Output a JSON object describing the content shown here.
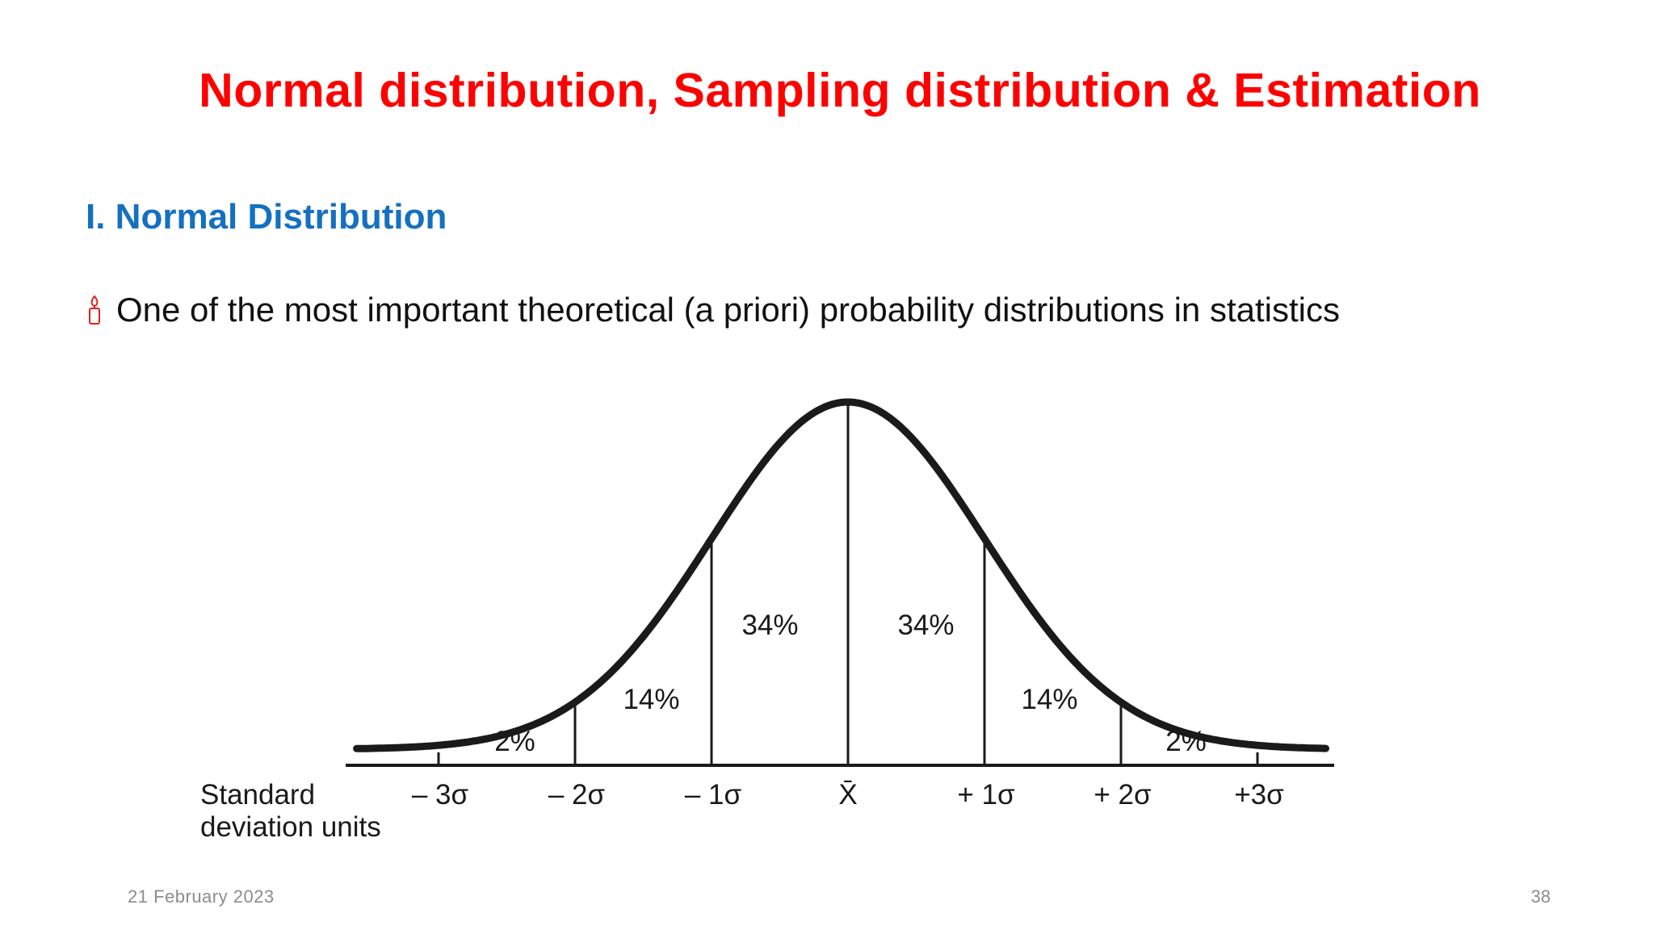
{
  "slide": {
    "title": "Normal distribution, Sampling distribution & Estimation",
    "section_heading": "I. Normal Distribution",
    "bullet": {
      "icon": "candle-icon",
      "text": "One of the most important theoretical (a priori) probability distributions in statistics"
    },
    "footer": {
      "date": "21 February 2023",
      "page_number": "38"
    }
  },
  "colors": {
    "title": "#ff0000",
    "heading": "#1570c0",
    "bullet_icon": "#e02020",
    "curve": "#1a1a1a",
    "footer": "#8c8c8c"
  },
  "chart_data": {
    "type": "area",
    "curve": "normal",
    "xlabel": "Standard\ndeviation units",
    "xlabel_lines": [
      "Standard",
      "deviation units"
    ],
    "x_ticks": [
      {
        "value": -3,
        "label": "– 3σ"
      },
      {
        "value": -2,
        "label": "– 2σ"
      },
      {
        "value": -1,
        "label": "– 1σ"
      },
      {
        "value": 0,
        "label": "X̄"
      },
      {
        "value": 1,
        "label": "+ 1σ"
      },
      {
        "value": 2,
        "label": "+ 2σ"
      },
      {
        "value": 3,
        "label": "+3σ"
      }
    ],
    "regions": [
      {
        "from": -3,
        "to": -2,
        "label": "2%"
      },
      {
        "from": -2,
        "to": -1,
        "label": "14%"
      },
      {
        "from": -1,
        "to": 0,
        "label": "34%"
      },
      {
        "from": 0,
        "to": 1,
        "label": "34%"
      },
      {
        "from": 1,
        "to": 2,
        "label": "14%"
      },
      {
        "from": 2,
        "to": 3,
        "label": "2%"
      }
    ],
    "xlim": [
      -3.6,
      3.5
    ],
    "grid": false
  }
}
